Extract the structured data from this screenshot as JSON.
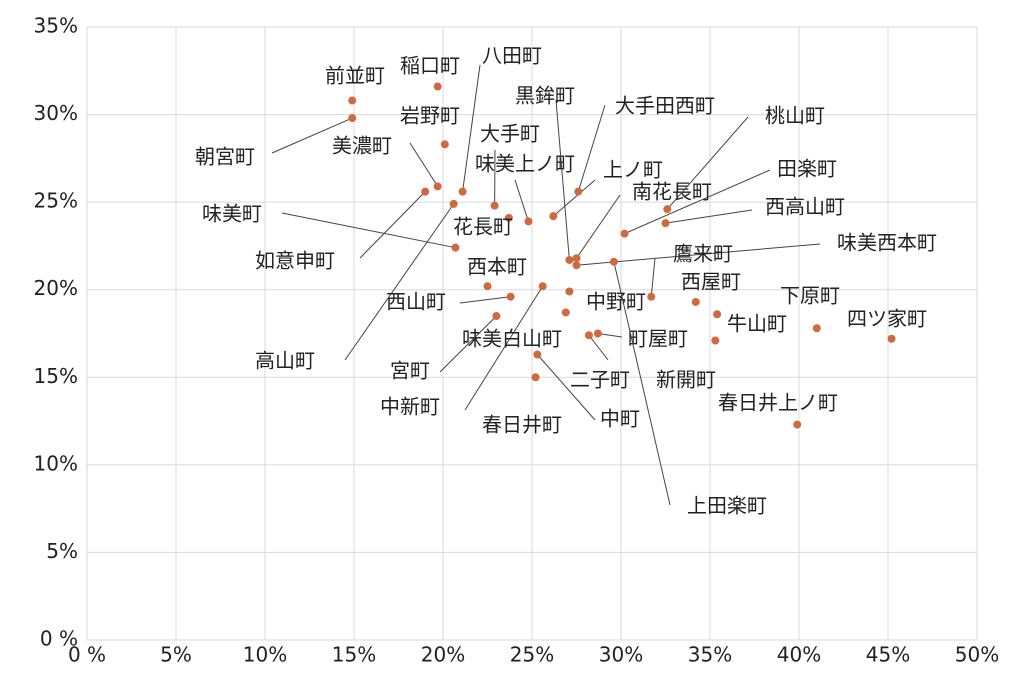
{
  "chart_data": {
    "type": "scatter",
    "color": "#d0693f",
    "grid": true,
    "labels": [
      "前並町",
      "稲口町",
      "朝宮町",
      "岩野町",
      "美濃町",
      "如意申町",
      "八田町",
      "高山町",
      "大手町",
      "花長町",
      "味美上ノ町",
      "上ノ町",
      "大手田西町",
      "黒鉾町",
      "南花長町",
      "味美西本町",
      "桃山町",
      "田楽町",
      "西高山町",
      "鷹来町",
      "味美町",
      "西本町",
      "西山町",
      "中新町",
      "中野町",
      "味美白山町",
      "宮町",
      "二子町",
      "町屋町",
      "上田楽町",
      "西屋町",
      "下原町",
      "四ツ家町",
      "牛山町",
      "新開町",
      "中町",
      "春日井町",
      "春日井上ノ町"
    ],
    "x": [
      14.9,
      19.7,
      14.9,
      20.1,
      19.7,
      19.0,
      21.1,
      20.6,
      22.9,
      23.7,
      24.8,
      26.2,
      27.6,
      27.1,
      27.5,
      27.5,
      32.6,
      30.2,
      32.5,
      31.7,
      20.7,
      22.5,
      23.8,
      25.6,
      27.1,
      26.9,
      23.0,
      28.2,
      28.7,
      29.6,
      34.2,
      41.0,
      45.2,
      35.4,
      35.3,
      25.3,
      25.2,
      39.9
    ],
    "y": [
      30.8,
      31.6,
      29.8,
      28.3,
      25.9,
      25.6,
      25.6,
      24.9,
      24.8,
      24.1,
      23.9,
      24.2,
      25.6,
      21.7,
      21.8,
      21.4,
      24.6,
      23.2,
      23.8,
      19.6,
      22.4,
      20.2,
      19.6,
      20.2,
      19.9,
      18.7,
      18.5,
      17.4,
      17.5,
      21.6,
      19.3,
      17.8,
      17.2,
      18.6,
      17.1,
      16.3,
      15.0,
      12.3
    ],
    "xlim": [
      0,
      50
    ],
    "xticks": [
      {
        "value": 0,
        "label": "0 %"
      },
      {
        "value": 5,
        "label": "5%"
      },
      {
        "value": 10,
        "label": "10%"
      },
      {
        "value": 15,
        "label": "15%"
      },
      {
        "value": 20,
        "label": "20%"
      },
      {
        "value": 25,
        "label": "25%"
      },
      {
        "value": 30,
        "label": "30%"
      },
      {
        "value": 35,
        "label": "35%"
      },
      {
        "value": 40,
        "label": "40%"
      },
      {
        "value": 45,
        "label": "45%"
      },
      {
        "value": 50,
        "label": "50%"
      }
    ],
    "ylim": [
      0,
      35
    ],
    "yticks": [
      {
        "value": 0,
        "label": "0 %"
      },
      {
        "value": 5,
        "label": "5%"
      },
      {
        "value": 10,
        "label": "10%"
      },
      {
        "value": 15,
        "label": "15%"
      },
      {
        "value": 20,
        "label": "20%"
      },
      {
        "value": 25,
        "label": "25%"
      },
      {
        "value": 30,
        "label": "30%"
      },
      {
        "value": 35,
        "label": "35%"
      }
    ]
  }
}
